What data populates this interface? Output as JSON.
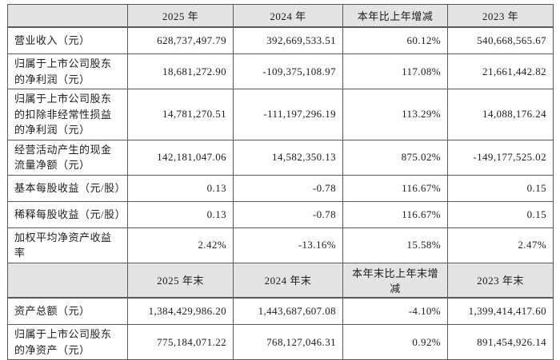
{
  "table": {
    "colors": {
      "header_bg": "#e4e4e4",
      "border": "#59595b",
      "text": "#1c1c1c",
      "page_bg": "#ffffff"
    },
    "header1": [
      "",
      "2025 年",
      "2024 年",
      "本年比上年增减",
      "2023 年"
    ],
    "rows1": [
      {
        "label": "营业收入（元）",
        "v": [
          "628,737,497.79",
          "392,669,533.51",
          "60.12%",
          "540,668,565.67"
        ]
      },
      {
        "label": "归属于上市公司股东的净利润（元）",
        "v": [
          "18,681,272.90",
          "-109,375,108.97",
          "117.08%",
          "21,661,442.82"
        ]
      },
      {
        "label": "归属于上市公司股东的扣除非经常性损益的净利润（元）",
        "v": [
          "14,781,270.51",
          "-111,197,296.19",
          "113.29%",
          "14,088,176.24"
        ]
      },
      {
        "label": "经营活动产生的现金流量净额（元）",
        "v": [
          "142,181,047.06",
          "14,582,350.13",
          "875.02%",
          "-149,177,525.02"
        ]
      },
      {
        "label": "基本每股收益（元/股）",
        "v": [
          "0.13",
          "-0.78",
          "116.67%",
          "0.15"
        ]
      },
      {
        "label": "稀释每股收益（元/股）",
        "v": [
          "0.13",
          "-0.78",
          "116.67%",
          "0.15"
        ]
      },
      {
        "label": "加权平均净资产收益率",
        "v": [
          "2.42%",
          "-13.16%",
          "15.58%",
          "2.47%"
        ]
      }
    ],
    "header2": [
      "",
      "2025 年末",
      "2024 年末",
      "本年末比上年末增减",
      "2023 年末"
    ],
    "rows2": [
      {
        "label": "资产总额（元）",
        "v": [
          "1,384,429,986.20",
          "1,443,687,607.08",
          "-4.10%",
          "1,399,414,417.60"
        ]
      },
      {
        "label": "归属于上市公司股东的净资产（元）",
        "v": [
          "775,184,071.22",
          "768,127,046.31",
          "0.92%",
          "891,454,926.14"
        ]
      }
    ]
  }
}
